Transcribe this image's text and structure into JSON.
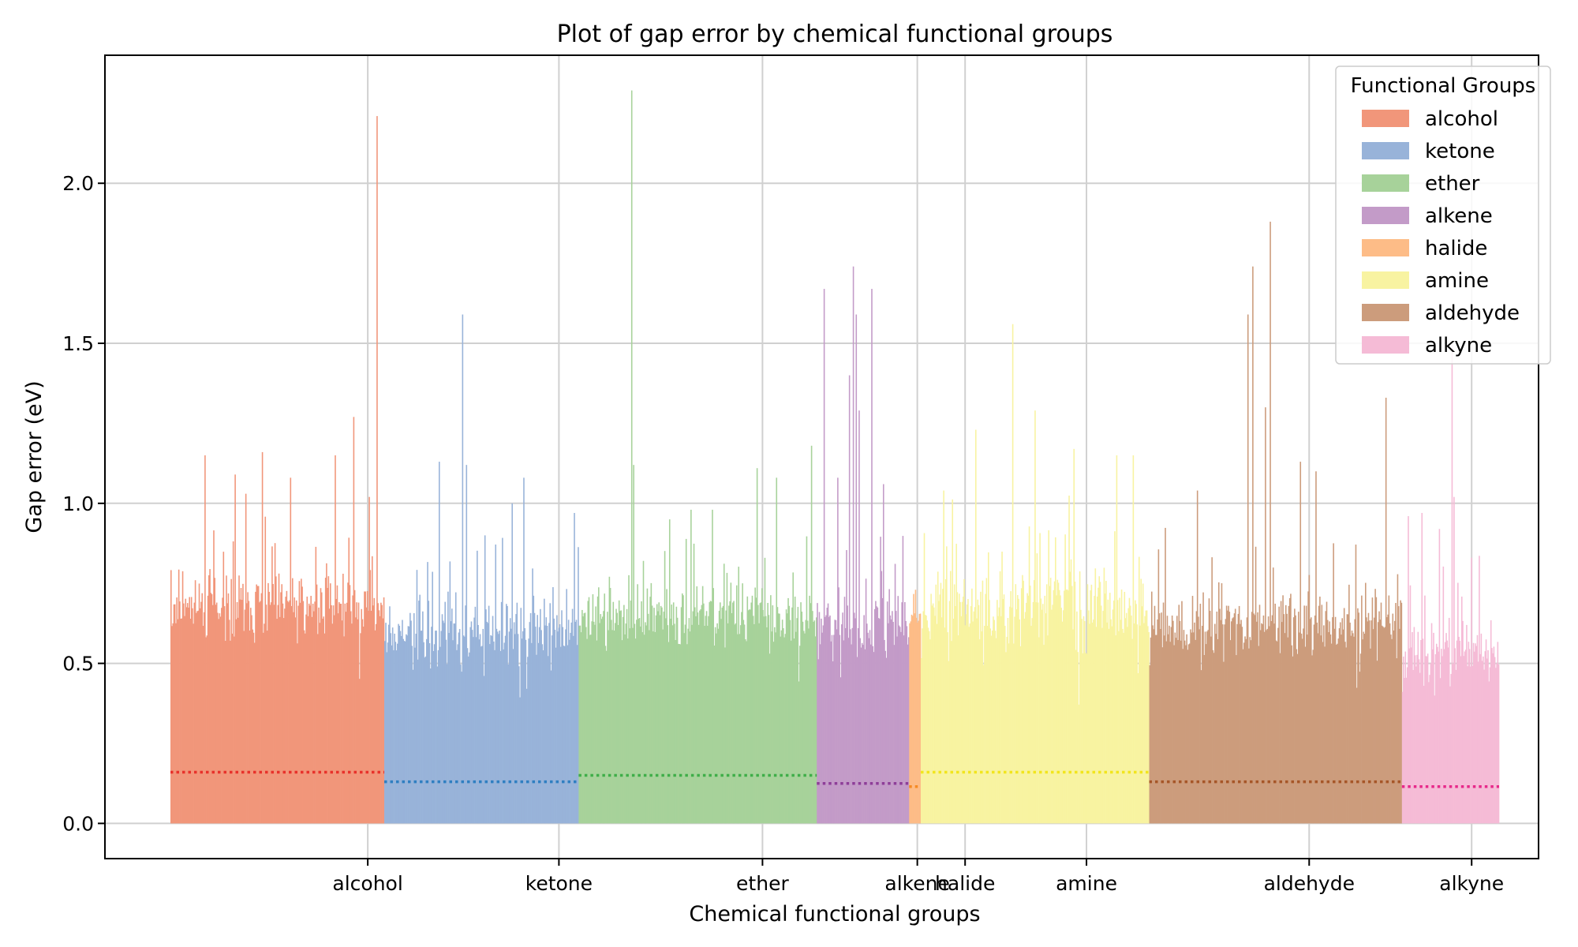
{
  "chart_data": {
    "type": "bar",
    "title": "Plot of gap error by chemical functional groups",
    "xlabel": "Chemical functional groups",
    "ylabel": "Gap error (eV)",
    "ylim": [
      -0.11,
      2.4
    ],
    "yticks": [
      "0.0",
      "0.5",
      "1.0",
      "1.5",
      "2.0"
    ],
    "grid": true,
    "legend": {
      "title": "Functional Groups",
      "placement": "top-right"
    },
    "groups": [
      {
        "name": "alcohol",
        "color": "#f1967a",
        "mean_color": "#e8322b",
        "mean": 0.16,
        "n": 220,
        "base": 0.68,
        "spread": 0.16,
        "max": 2.21,
        "seed": 11,
        "label_x": 2.75,
        "peaks": [
          [
            0.97,
            2.21
          ],
          [
            0.86,
            1.27
          ],
          [
            0.77,
            1.15
          ],
          [
            0.16,
            1.15
          ],
          [
            0.3,
            1.09
          ],
          [
            0.43,
            1.16
          ],
          [
            0.56,
            1.08
          ],
          [
            0.93,
            1.02
          ],
          [
            0.35,
            1.03
          ]
        ]
      },
      {
        "name": "ketone",
        "color": "#98b3d9",
        "mean_color": "#2f7fc1",
        "mean": 0.13,
        "n": 200,
        "base": 0.6,
        "spread": 0.14,
        "max": 1.59,
        "seed": 23,
        "label_x": 4.75,
        "peaks": [
          [
            0.4,
            1.59
          ],
          [
            0.42,
            1.12
          ],
          [
            0.28,
            1.13
          ],
          [
            0.72,
            1.08
          ],
          [
            0.66,
            1.0
          ],
          [
            0.98,
            0.97
          ],
          [
            0.52,
            0.9
          ]
        ]
      },
      {
        "name": "ether",
        "color": "#a7d29a",
        "mean_color": "#3fae49",
        "mean": 0.15,
        "n": 245,
        "base": 0.65,
        "spread": 0.14,
        "max": 2.29,
        "seed": 37,
        "label_x": 6.88,
        "peaks": [
          [
            0.22,
            2.29
          ],
          [
            0.23,
            1.12
          ],
          [
            0.75,
            1.11
          ],
          [
            0.83,
            1.08
          ],
          [
            0.47,
            0.98
          ],
          [
            0.56,
            0.98
          ],
          [
            0.98,
            1.18
          ],
          [
            0.38,
            0.95
          ]
        ]
      },
      {
        "name": "alkene",
        "color": "#c39bc8",
        "mean_color": "#8e3e99",
        "mean": 0.125,
        "n": 95,
        "base": 0.62,
        "spread": 0.16,
        "max": 1.74,
        "seed": 41,
        "label_x": 8.5,
        "peaks": [
          [
            0.07,
            1.67
          ],
          [
            0.39,
            1.74
          ],
          [
            0.43,
            1.59
          ],
          [
            0.46,
            1.29
          ],
          [
            0.6,
            1.67
          ],
          [
            0.22,
            1.08
          ],
          [
            0.72,
            1.06
          ],
          [
            0.35,
            1.4
          ]
        ]
      },
      {
        "name": "halide",
        "color": "#fdbc87",
        "mean_color": "#f58a24",
        "mean": 0.115,
        "n": 12,
        "base": 0.66,
        "spread": 0.05,
        "max": 0.73,
        "seed": 53,
        "label_x": 9.0,
        "peaks": [
          [
            0.5,
            0.73
          ]
        ]
      },
      {
        "name": "amine",
        "color": "#f8f3a1",
        "mean_color": "#f2e51d",
        "mean": 0.16,
        "n": 235,
        "base": 0.68,
        "spread": 0.16,
        "max": 1.71,
        "seed": 67,
        "label_x": 10.27,
        "peaks": [
          [
            0.24,
            1.71
          ],
          [
            0.4,
            1.56
          ],
          [
            0.5,
            1.29
          ],
          [
            0.24,
            1.23
          ],
          [
            0.67,
            1.17
          ],
          [
            0.86,
            1.15
          ],
          [
            0.1,
            1.04
          ],
          [
            0.93,
            1.15
          ]
        ]
      },
      {
        "name": "aldehyde",
        "color": "#cc9c7c",
        "mean_color": "#a65628",
        "mean": 0.13,
        "n": 260,
        "base": 0.62,
        "spread": 0.15,
        "max": 2.16,
        "seed": 79,
        "label_x": 12.6,
        "peaks": [
          [
            0.19,
            2.16
          ],
          [
            0.39,
            1.59
          ],
          [
            0.41,
            1.74
          ],
          [
            0.46,
            1.3
          ],
          [
            0.48,
            1.88
          ],
          [
            0.66,
            1.1
          ],
          [
            0.94,
            1.33
          ],
          [
            0.6,
            1.13
          ],
          [
            0.19,
            1.04
          ]
        ]
      },
      {
        "name": "alkyne",
        "color": "#f5bbd6",
        "mean_color": "#e7298a",
        "mean": 0.115,
        "n": 100,
        "base": 0.52,
        "spread": 0.13,
        "max": 1.5,
        "seed": 97,
        "label_x": 14.3,
        "peaks": [
          [
            0.52,
            1.5
          ],
          [
            0.06,
            0.96
          ],
          [
            0.2,
            0.97
          ],
          [
            0.54,
            1.02
          ],
          [
            0.38,
            0.92
          ],
          [
            0.72,
            0.83
          ]
        ]
      }
    ]
  }
}
